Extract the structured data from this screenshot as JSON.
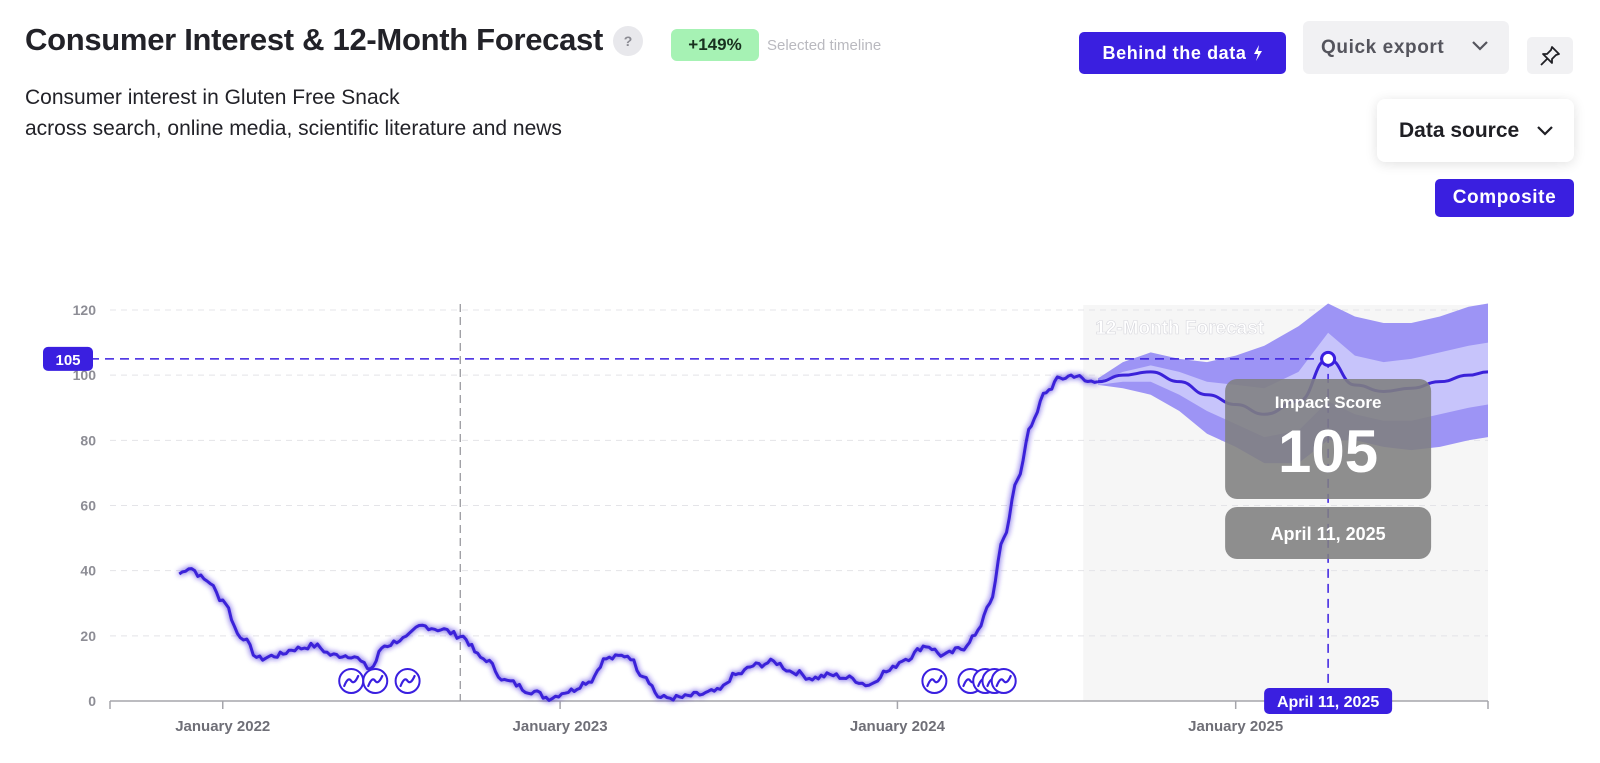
{
  "header": {
    "title": "Consumer Interest & 12-Month Forecast",
    "help_label": "?",
    "change_badge": "+149%",
    "change_caption": "Selected timeline",
    "subtitle_line1": "Consumer interest in Gluten Free Snack",
    "subtitle_line2": "across search, online media, scientific literature and news"
  },
  "toolbar": {
    "behind_label": "Behind the data",
    "export_label": "Quick export",
    "datasource_label": "Data source",
    "composite_label": "Composite"
  },
  "colors": {
    "accent": "#3a1fe0",
    "line": "#3b22d9",
    "band_outer": "#9d94f5",
    "band_inner": "#c7c4fb",
    "badge_green": "#a6f2b4",
    "tooltip_bg": "#808080"
  },
  "icons": {
    "help": "question-icon",
    "behind": "bolt-icon",
    "export": "chevron-down-icon",
    "pin": "pin-icon",
    "datasource": "chevron-down-icon",
    "event": "trend-event-icon"
  },
  "chart_data": {
    "type": "line",
    "title": "",
    "xlabel": "",
    "ylabel": "",
    "ylim": [
      0,
      120
    ],
    "yticks": [
      0,
      20,
      40,
      60,
      80,
      100,
      120
    ],
    "xlim": [
      "2021-09-01",
      "2025-10-01"
    ],
    "xticks": [
      {
        "date": "2022-01-01",
        "label": "January 2022"
      },
      {
        "date": "2023-01-01",
        "label": "January 2023"
      },
      {
        "date": "2024-01-01",
        "label": "January 2024"
      },
      {
        "date": "2025-01-01",
        "label": "January 2025"
      }
    ],
    "grid": true,
    "history": {
      "x": [
        "2021-11-15",
        "2021-11-25",
        "2021-12-15",
        "2022-01-01",
        "2022-01-20",
        "2022-02-10",
        "2022-03-01",
        "2022-03-20",
        "2022-04-10",
        "2022-05-01",
        "2022-05-20",
        "2022-06-10",
        "2022-06-25",
        "2022-07-15",
        "2022-08-05",
        "2022-08-25",
        "2022-09-15",
        "2022-10-10",
        "2022-11-05",
        "2022-12-01",
        "2022-12-20",
        "2023-01-10",
        "2023-02-01",
        "2023-02-20",
        "2023-03-15",
        "2023-04-01",
        "2023-04-20",
        "2023-05-10",
        "2023-06-01",
        "2023-06-20",
        "2023-07-10",
        "2023-08-01",
        "2023-08-20",
        "2023-09-10",
        "2023-10-01",
        "2023-10-20",
        "2023-11-10",
        "2023-12-01",
        "2023-12-20",
        "2024-01-10",
        "2024-02-01",
        "2024-02-20",
        "2024-03-10",
        "2024-03-25",
        "2024-04-10",
        "2024-04-25",
        "2024-05-10",
        "2024-05-25",
        "2024-06-10",
        "2024-06-25",
        "2024-07-10",
        "2024-07-25",
        "2024-08-05"
      ],
      "values": [
        39,
        41,
        37,
        31,
        20,
        13,
        14,
        16,
        17,
        14,
        14,
        10,
        17,
        19,
        23,
        22,
        20,
        13,
        6,
        3,
        1,
        3,
        6,
        13,
        14,
        8,
        1,
        1,
        2,
        3,
        8,
        11,
        12,
        9,
        7,
        8,
        7,
        5,
        9,
        13,
        17,
        14,
        16,
        20,
        30,
        50,
        68,
        85,
        95,
        99,
        100,
        98,
        98
      ]
    },
    "forecast_start": "2024-07-20",
    "forecast": {
      "x": [
        "2024-08-05",
        "2024-09-01",
        "2024-10-01",
        "2024-11-01",
        "2024-12-01",
        "2025-01-01",
        "2025-02-01",
        "2025-03-10",
        "2025-04-11",
        "2025-05-10",
        "2025-06-10",
        "2025-07-10",
        "2025-08-10",
        "2025-09-10",
        "2025-10-01"
      ],
      "values": [
        98,
        100,
        101,
        98,
        94,
        91,
        88,
        92,
        105,
        97,
        95,
        96,
        98,
        100,
        101
      ],
      "outer_upper": [
        99,
        104,
        107,
        105,
        104,
        106,
        109,
        115,
        122,
        118,
        116,
        116,
        118,
        121,
        122
      ],
      "outer_lower": [
        97,
        96,
        94,
        89,
        82,
        78,
        73,
        73,
        80,
        80,
        78,
        77,
        78,
        80,
        81
      ],
      "inner_upper": [
        98,
        101,
        103,
        101,
        98,
        97,
        96,
        101,
        113,
        106,
        104,
        105,
        107,
        109,
        110
      ],
      "inner_lower": [
        97,
        98,
        98,
        94,
        89,
        85,
        81,
        83,
        92,
        88,
        86,
        86,
        88,
        90,
        91
      ]
    },
    "forecast_label": "12-Month Forecast",
    "events": [
      "2022-05-20",
      "2022-06-15",
      "2022-07-20",
      "2024-02-10",
      "2024-03-20",
      "2024-04-05",
      "2024-04-15",
      "2024-04-25"
    ],
    "selected": {
      "date": "2025-04-11",
      "value": 105,
      "value_label": "105",
      "date_label": "April 11, 2025",
      "score_title": "Impact Score",
      "score_value": "105"
    },
    "crosshair_date": "2022-09-15"
  }
}
